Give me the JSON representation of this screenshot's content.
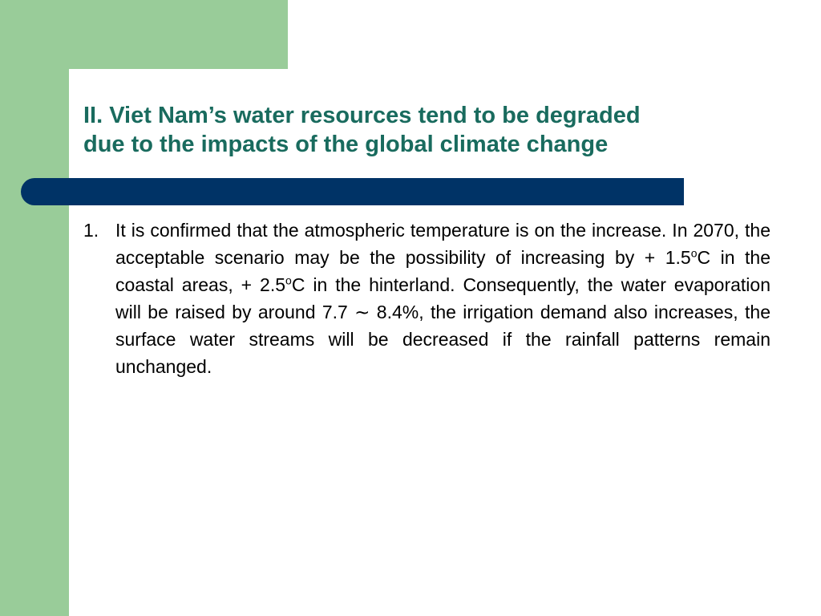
{
  "colors": {
    "accent_green": "#99cc99",
    "title_teal": "#196b5e",
    "bar_navy": "#003366",
    "background": "#ffffff",
    "body_text": "#000000"
  },
  "slide": {
    "title_lines": [
      "II. Viet Nam’s water resources tend to be degraded",
      "due to the impacts of the global climate change"
    ],
    "items": [
      {
        "number": "1.",
        "segments": {
          "s1": "It is confirmed that the atmospheric temperature is on the increase. In 2070, the acceptable scenario may be the possibility of increasing by + 1.5",
          "sup1": "o",
          "s2": "C in the coastal areas, + 2.5",
          "sup2": "o",
          "s3": "C in the hinterland. Consequently, the water evaporation will be raised by around 7.7 ∼  8.4%, the irrigation demand also increases, the surface water streams will be decreased if the rainfall patterns remain unchanged."
        }
      }
    ]
  }
}
